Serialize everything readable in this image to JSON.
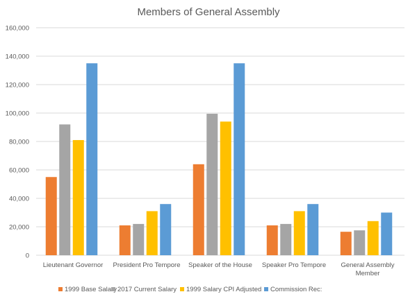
{
  "chart_data": {
    "type": "bar",
    "title": "Members of General Assembly",
    "xlabel": "",
    "ylabel": "",
    "ylim": [
      0,
      160000
    ],
    "yticks": [
      0,
      20000,
      40000,
      60000,
      80000,
      100000,
      120000,
      140000,
      160000
    ],
    "ytick_labels": [
      "0",
      "20,000",
      "40,000",
      "60,000",
      "80,000",
      "100,000",
      "120,000",
      "140,000",
      "160,000"
    ],
    "grid": true,
    "legend_position": "bottom",
    "categories": [
      [
        "Lieutenant Governor"
      ],
      [
        "President Pro Tempore"
      ],
      [
        "Speaker of the House"
      ],
      [
        "Speaker Pro Tempore"
      ],
      [
        "General Assembly",
        "Member"
      ]
    ],
    "series": [
      {
        "name": "1999 Base Salary",
        "color": "#ed7d31",
        "values": [
          55000,
          21000,
          64000,
          21000,
          16500
        ]
      },
      {
        "name": "2017 Current Salary",
        "color": "#a5a5a5",
        "values": [
          92000,
          22000,
          99500,
          22000,
          17500
        ]
      },
      {
        "name": "1999 Salary CPI Adjusted",
        "color": "#ffc000",
        "values": [
          81000,
          31000,
          94000,
          31000,
          24000
        ]
      },
      {
        "name": "Commission Rec:",
        "color": "#5b9bd5",
        "values": [
          135000,
          36000,
          135000,
          36000,
          30000
        ]
      }
    ]
  }
}
